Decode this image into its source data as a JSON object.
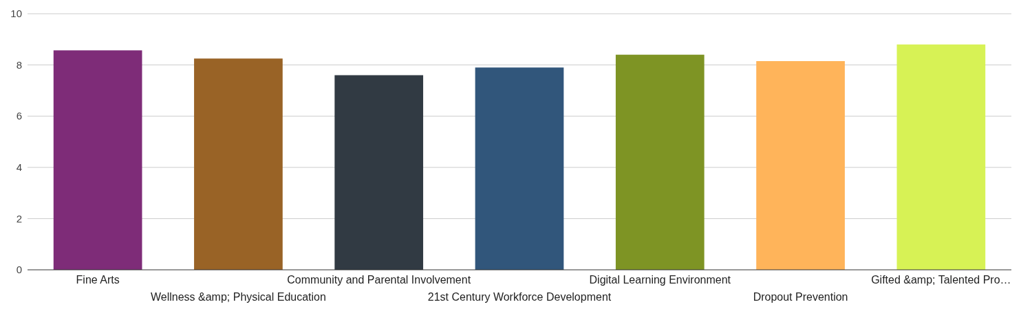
{
  "chart_data": {
    "type": "bar",
    "categories": [
      "Fine Arts",
      "Wellness &amp; Physical Education",
      "Community and Parental Involvement",
      "21st Century Workforce Development",
      "Digital Learning Environment",
      "Dropout Prevention",
      "Gifted &amp; Talented Pro…"
    ],
    "values": [
      8.57,
      8.25,
      7.6,
      7.9,
      8.4,
      8.15,
      8.8
    ],
    "colors": [
      "#7e2c78",
      "#996326",
      "#313a43",
      "#31567b",
      "#7e9424",
      "#ffb45a",
      "#d7f255"
    ],
    "ylim": [
      0,
      10
    ],
    "yticks": [
      0,
      2,
      4,
      6,
      8,
      10
    ],
    "grid": "y"
  }
}
